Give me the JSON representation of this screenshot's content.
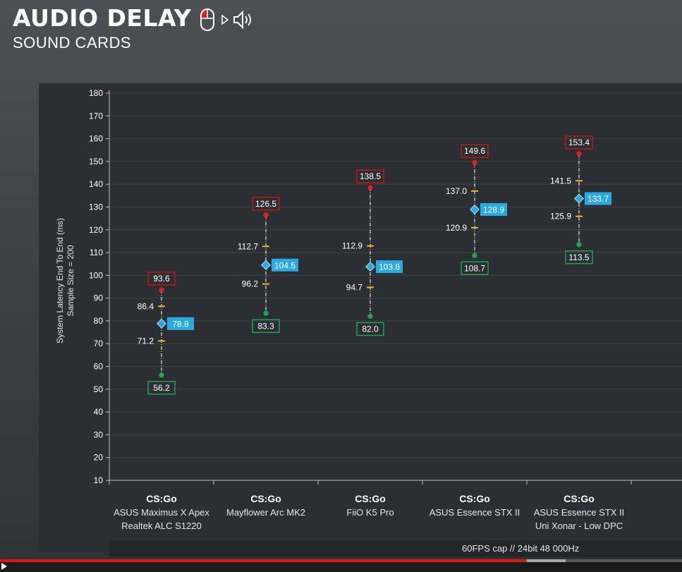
{
  "header": {
    "title": "AUDIO DELAY",
    "subtitle": "SOUND CARDS",
    "icons": [
      "mouse-icon",
      "arrow-right-icon",
      "speaker-icon"
    ]
  },
  "footer": {
    "note": "60FPS cap // 24bit  48 000Hz"
  },
  "player": {
    "progress_pct": 77
  },
  "colors": {
    "max": "#e31b23",
    "min": "#1fa851",
    "avg": "#29abe2",
    "percentile": "#f0b429",
    "axis_text": "#ffffff",
    "grid": "#3c4044"
  },
  "chart_data": {
    "type": "range-point",
    "title": "",
    "ylabel": "System Latency End To End (ms)",
    "ylabel2": "Sample Size = 200",
    "ylim": [
      10,
      180
    ],
    "yticks": [
      10,
      20,
      30,
      40,
      50,
      60,
      70,
      80,
      90,
      100,
      110,
      120,
      130,
      140,
      150,
      160,
      170,
      180
    ],
    "grid": "horizontal",
    "categories": [
      {
        "game": "CS:Go",
        "line1": "ASUS Maximus X Apex",
        "line2": "Realtek ALC S1220"
      },
      {
        "game": "CS:Go",
        "line1": "Mayflower Arc MK2",
        "line2": ""
      },
      {
        "game": "CS:Go",
        "line1": "FiiO K5 Pro",
        "line2": ""
      },
      {
        "game": "CS:Go",
        "line1": "ASUS Essence STX II",
        "line2": ""
      },
      {
        "game": "CS:Go",
        "line1": "ASUS Essence STX II",
        "line2": "Uni Xonar - Low DPC"
      }
    ],
    "series": [
      {
        "key": "max",
        "values": [
          93.6,
          126.5,
          138.5,
          149.6,
          153.4
        ]
      },
      {
        "key": "upper",
        "values": [
          86.4,
          112.7,
          112.9,
          137.0,
          141.5
        ]
      },
      {
        "key": "avg",
        "values": [
          78.8,
          104.5,
          103.8,
          128.9,
          133.7
        ]
      },
      {
        "key": "lower",
        "values": [
          71.2,
          96.2,
          94.7,
          120.9,
          125.9
        ]
      },
      {
        "key": "min",
        "values": [
          56.2,
          83.3,
          82.0,
          108.7,
          113.5
        ]
      }
    ],
    "labels": {
      "max": [
        "93.6",
        "126.5",
        "138.5",
        "149.6",
        "153.4"
      ],
      "upper": [
        "86.4",
        "112.7",
        "112.9",
        "137.0",
        "141.5"
      ],
      "avg": [
        "78.8",
        "104.5",
        "103.8",
        "128.9",
        "133.7"
      ],
      "lower": [
        "71.2",
        "96.2",
        "94.7",
        "120.9",
        "125.9"
      ],
      "min": [
        "56.2",
        "83.3",
        "82.0",
        "108.7",
        "113.5"
      ]
    }
  }
}
